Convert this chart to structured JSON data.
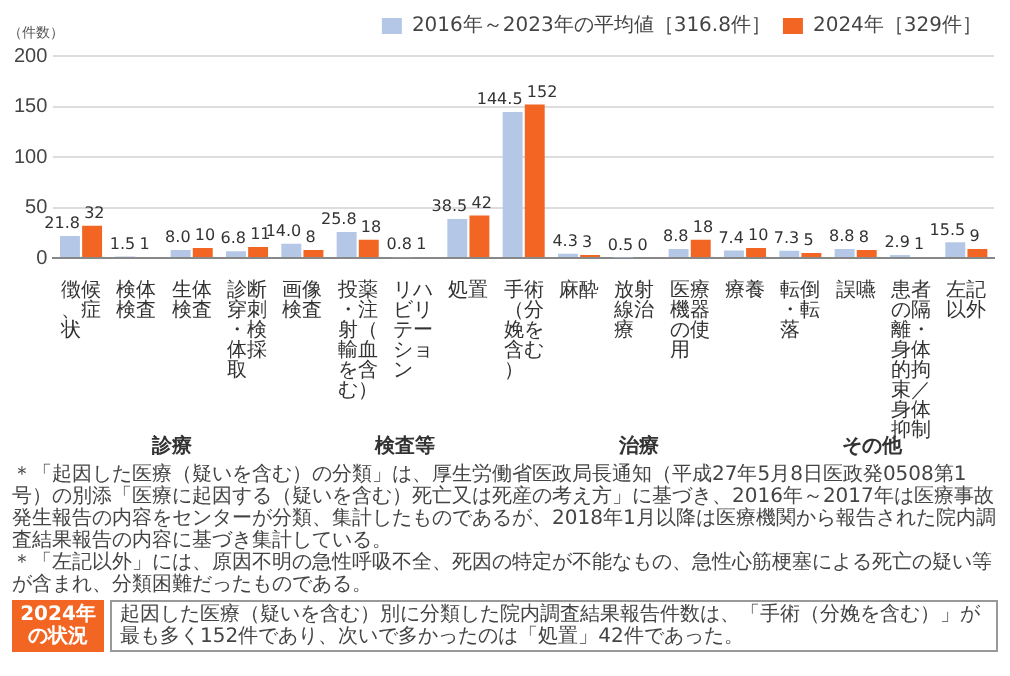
{
  "chart_data": {
    "type": "bar",
    "ylabel": "（件数）",
    "categories": [
      "徴候、症状",
      "検体検査",
      "生体検査",
      "診断穿刺・検体採取",
      "画像検査",
      "投薬・注射（輸血を含む）",
      "リハビリテーション",
      "処置",
      "手術（分娩を含む）",
      "麻酔",
      "放射線治療",
      "医療機器の使用",
      "療養",
      "転倒・転落",
      "誤嚥",
      "患者の隔離・身体的拘束／身体抑制",
      "左記以外"
    ],
    "series": [
      {
        "name": "2016年～2023年の平均値［316.8件］",
        "color": "#b4c7e7",
        "values": [
          21.8,
          1.5,
          8.0,
          6.8,
          14.0,
          25.8,
          0.8,
          38.5,
          144.5,
          4.3,
          0.5,
          8.8,
          7.4,
          7.3,
          8.8,
          2.9,
          15.5
        ],
        "value_labels": [
          "21.8",
          "1.5",
          "8.0",
          "6.8",
          "14.0",
          "25.8",
          "0.8",
          "38.5",
          "144.5",
          "4.3",
          "0.5",
          "8.8",
          "7.4",
          "7.3",
          "8.8",
          "2.9",
          "15.5"
        ]
      },
      {
        "name": "2024年［329件］",
        "color": "#f26522",
        "values": [
          32,
          1,
          10,
          11,
          8,
          18,
          1,
          42,
          152,
          3,
          0,
          18,
          10,
          5,
          8,
          1,
          9
        ],
        "value_labels": [
          "32",
          "1",
          "10",
          "11",
          "8",
          "18",
          "1",
          "42",
          "152",
          "3",
          "0",
          "18",
          "10",
          "5",
          "8",
          "1",
          "9"
        ]
      }
    ],
    "ylim": [
      0,
      200
    ],
    "yticks": [
      0,
      50,
      100,
      150,
      200
    ],
    "grid": "y",
    "legend": "top right",
    "annotations": [
      "診療",
      "検査等",
      "治療",
      "その他",
      "＊「起因した医療（疑いを含む）の分類」は、厚生労働省医政局長通知（平成27年5月8日医政発0508第1号）の別添「医療に起因する（疑いを含む）死亡又は死産の考え方」に基づき、2016年～2017年は医療事故発生報告の内容をセンターが分類、集計したものであるが、2018年1月以降は医療機関から報告された院内調査結果報告の内容に基づき集計している。",
      "＊「左記以外」には、原因不明の急性呼吸不全、死因の特定が不能なもの、急性心筋梗塞による死亡の疑い等が含まれ、分類困難だったものである。",
      "2024年の状況",
      "起因した医療（疑いを含む）別に分類した院内調査結果報告件数は、「手術（分娩を含む）」が最も多く152件であり、次いで多かったのは「処置」42件であった。"
    ]
  }
}
